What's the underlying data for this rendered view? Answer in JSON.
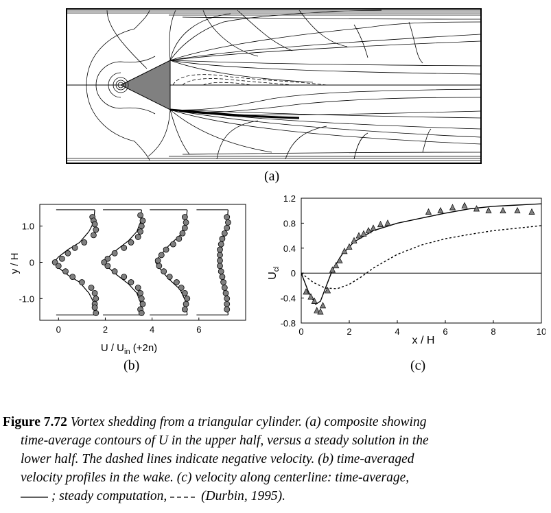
{
  "figure": {
    "panel_a": {
      "label": "(a)"
    },
    "panel_b": {
      "label": "(b)",
      "xlabel_main": "U / U",
      "xlabel_sub": "in",
      "xlabel_suffix": " (+2n)",
      "ylabel": "y / H",
      "xticks": [
        "0",
        "2",
        "4",
        "6"
      ],
      "yticks": [
        "1.0",
        "0",
        "-1.0"
      ]
    },
    "panel_c": {
      "label": "(c)",
      "xlabel": "x / H",
      "ylabel_main": "U",
      "ylabel_sub": "cl",
      "xticks": [
        "0",
        "2",
        "4",
        "6",
        "8",
        "10"
      ],
      "yticks": [
        "1.2",
        "0.8",
        "0.4",
        "0",
        "-0.4",
        "-0.8"
      ]
    }
  },
  "caption": {
    "figure_label": "Figure 7.72",
    "line1": "Vortex shedding from a triangular cylinder. (a) composite showing",
    "line2": "time-average contours of U in the upper half, versus a steady solution in the",
    "line3": "lower half. The dashed lines indicate negative velocity. (b) time-averaged",
    "line4": "velocity profiles in the wake. (c) velocity along centerline: time-average,",
    "line5": "; steady computation,",
    "line5_tail": "(Durbin, 1995)."
  },
  "chart_data": [
    {
      "type": "line",
      "panel": "b",
      "xlabel": "U / Uin (+2n)",
      "ylabel": "y / H",
      "xlim": [
        -0.8,
        8.0
      ],
      "ylim": [
        -1.6,
        1.6
      ],
      "series": [
        {
          "offset": 0,
          "line": [
            [
              1.55,
              1.45
            ],
            [
              1.5,
              1.1
            ],
            [
              1.3,
              0.85
            ],
            [
              0.9,
              0.55
            ],
            [
              0.4,
              0.35
            ],
            [
              0.0,
              0.15
            ],
            [
              -0.2,
              0.0
            ],
            [
              0.0,
              -0.15
            ],
            [
              0.4,
              -0.35
            ],
            [
              0.9,
              -0.55
            ],
            [
              1.3,
              -0.85
            ],
            [
              1.5,
              -1.1
            ],
            [
              1.55,
              -1.45
            ]
          ],
          "points": [
            [
              1.45,
              1.25
            ],
            [
              1.5,
              1.15
            ],
            [
              1.55,
              1.05
            ],
            [
              1.6,
              0.9
            ],
            [
              1.5,
              0.75
            ],
            [
              1.1,
              0.55
            ],
            [
              0.7,
              0.4
            ],
            [
              0.4,
              0.25
            ],
            [
              0.15,
              0.1
            ],
            [
              -0.15,
              0.0
            ],
            [
              0.0,
              -0.1
            ],
            [
              0.3,
              -0.25
            ],
            [
              0.6,
              -0.4
            ],
            [
              1.0,
              -0.55
            ],
            [
              1.4,
              -0.7
            ],
            [
              1.55,
              -0.85
            ],
            [
              1.6,
              -1.0
            ],
            [
              1.55,
              -1.15
            ],
            [
              1.55,
              -1.25
            ],
            [
              1.6,
              -1.4
            ]
          ]
        },
        {
          "offset": 2,
          "line": [
            [
              3.55,
              1.45
            ],
            [
              3.5,
              1.1
            ],
            [
              3.35,
              0.85
            ],
            [
              3.0,
              0.6
            ],
            [
              2.5,
              0.35
            ],
            [
              2.05,
              0.1
            ],
            [
              1.9,
              0.0
            ],
            [
              2.05,
              -0.1
            ],
            [
              2.5,
              -0.35
            ],
            [
              3.0,
              -0.6
            ],
            [
              3.35,
              -0.85
            ],
            [
              3.5,
              -1.1
            ],
            [
              3.55,
              -1.45
            ]
          ],
          "points": [
            [
              3.5,
              1.3
            ],
            [
              3.6,
              1.15
            ],
            [
              3.55,
              1.0
            ],
            [
              3.5,
              0.85
            ],
            [
              3.4,
              0.7
            ],
            [
              3.1,
              0.55
            ],
            [
              2.8,
              0.4
            ],
            [
              2.4,
              0.25
            ],
            [
              2.1,
              0.1
            ],
            [
              1.95,
              0.0
            ],
            [
              2.1,
              -0.1
            ],
            [
              2.4,
              -0.25
            ],
            [
              2.8,
              -0.4
            ],
            [
              3.1,
              -0.55
            ],
            [
              3.4,
              -0.7
            ],
            [
              3.5,
              -0.85
            ],
            [
              3.55,
              -1.0
            ],
            [
              3.6,
              -1.15
            ],
            [
              3.5,
              -1.3
            ],
            [
              3.55,
              -1.4
            ]
          ]
        },
        {
          "offset": 4,
          "line": [
            [
              5.5,
              1.45
            ],
            [
              5.45,
              1.1
            ],
            [
              5.2,
              0.75
            ],
            [
              4.7,
              0.45
            ],
            [
              4.3,
              0.15
            ],
            [
              4.15,
              0.0
            ],
            [
              4.3,
              -0.15
            ],
            [
              4.7,
              -0.45
            ],
            [
              5.2,
              -0.75
            ],
            [
              5.45,
              -1.1
            ],
            [
              5.5,
              -1.45
            ]
          ],
          "points": [
            [
              5.4,
              1.25
            ],
            [
              5.45,
              1.1
            ],
            [
              5.4,
              0.95
            ],
            [
              5.3,
              0.8
            ],
            [
              5.15,
              0.65
            ],
            [
              4.9,
              0.5
            ],
            [
              4.6,
              0.35
            ],
            [
              4.4,
              0.2
            ],
            [
              4.25,
              0.05
            ],
            [
              4.3,
              -0.1
            ],
            [
              4.5,
              -0.25
            ],
            [
              4.75,
              -0.4
            ],
            [
              5.05,
              -0.55
            ],
            [
              5.25,
              -0.7
            ],
            [
              5.4,
              -0.85
            ],
            [
              5.5,
              -1.0
            ],
            [
              5.45,
              -1.15
            ],
            [
              5.4,
              -1.3
            ]
          ]
        },
        {
          "offset": 6,
          "line": [
            [
              7.25,
              1.45
            ],
            [
              7.2,
              1.0
            ],
            [
              7.0,
              0.5
            ],
            [
              6.9,
              0.0
            ],
            [
              7.0,
              -0.5
            ],
            [
              7.2,
              -1.0
            ],
            [
              7.25,
              -1.45
            ]
          ],
          "points": [
            [
              7.2,
              1.25
            ],
            [
              7.25,
              1.1
            ],
            [
              7.2,
              0.95
            ],
            [
              7.1,
              0.8
            ],
            [
              7.0,
              0.65
            ],
            [
              6.95,
              0.5
            ],
            [
              6.9,
              0.35
            ],
            [
              6.9,
              0.2
            ],
            [
              6.9,
              0.05
            ],
            [
              6.9,
              -0.1
            ],
            [
              6.95,
              -0.25
            ],
            [
              7.0,
              -0.4
            ],
            [
              7.05,
              -0.55
            ],
            [
              7.1,
              -0.7
            ],
            [
              7.15,
              -0.85
            ],
            [
              7.2,
              -1.0
            ],
            [
              7.2,
              -1.15
            ],
            [
              7.2,
              -1.3
            ]
          ]
        }
      ]
    },
    {
      "type": "line",
      "panel": "c",
      "xlabel": "x / H",
      "ylabel": "Ucl",
      "xlim": [
        0,
        10
      ],
      "ylim": [
        -0.8,
        1.2
      ],
      "series": [
        {
          "style": "solid",
          "points": [
            [
              0,
              0
            ],
            [
              0.3,
              -0.3
            ],
            [
              0.6,
              -0.5
            ],
            [
              0.8,
              -0.45
            ],
            [
              1.0,
              -0.25
            ],
            [
              1.3,
              0.05
            ],
            [
              1.7,
              0.3
            ],
            [
              2.2,
              0.5
            ],
            [
              3.0,
              0.68
            ],
            [
              4.0,
              0.8
            ],
            [
              5.0,
              0.88
            ],
            [
              6.0,
              0.96
            ],
            [
              7.0,
              1.03
            ],
            [
              8.0,
              1.07
            ],
            [
              9.0,
              1.09
            ],
            [
              10.0,
              1.11
            ]
          ]
        },
        {
          "style": "dashed",
          "points": [
            [
              0,
              0
            ],
            [
              0.5,
              -0.15
            ],
            [
              1.0,
              -0.24
            ],
            [
              1.5,
              -0.25
            ],
            [
              2.0,
              -0.18
            ],
            [
              2.5,
              -0.06
            ],
            [
              3.0,
              0.08
            ],
            [
              4.0,
              0.3
            ],
            [
              5.0,
              0.45
            ],
            [
              6.0,
              0.55
            ],
            [
              7.0,
              0.62
            ],
            [
              8.0,
              0.68
            ],
            [
              9.0,
              0.72
            ],
            [
              10.0,
              0.76
            ]
          ]
        },
        {
          "style": "triangles",
          "points": [
            [
              0.2,
              -0.3
            ],
            [
              0.4,
              -0.38
            ],
            [
              0.55,
              -0.45
            ],
            [
              0.65,
              -0.6
            ],
            [
              0.8,
              -0.62
            ],
            [
              0.9,
              -0.52
            ],
            [
              1.1,
              -0.28
            ],
            [
              1.3,
              0.05
            ],
            [
              1.45,
              0.12
            ],
            [
              1.6,
              0.2
            ],
            [
              1.8,
              0.35
            ],
            [
              2.0,
              0.42
            ],
            [
              2.2,
              0.52
            ],
            [
              2.4,
              0.6
            ],
            [
              2.6,
              0.63
            ],
            [
              2.8,
              0.68
            ],
            [
              3.0,
              0.72
            ],
            [
              3.3,
              0.78
            ],
            [
              3.6,
              0.8
            ],
            [
              5.3,
              0.98
            ],
            [
              5.8,
              1.0
            ],
            [
              6.3,
              1.05
            ],
            [
              6.8,
              1.08
            ],
            [
              7.3,
              1.03
            ],
            [
              7.8,
              1.0
            ],
            [
              8.4,
              1.0
            ],
            [
              9.0,
              1.0
            ],
            [
              9.6,
              0.98
            ]
          ]
        }
      ]
    }
  ]
}
